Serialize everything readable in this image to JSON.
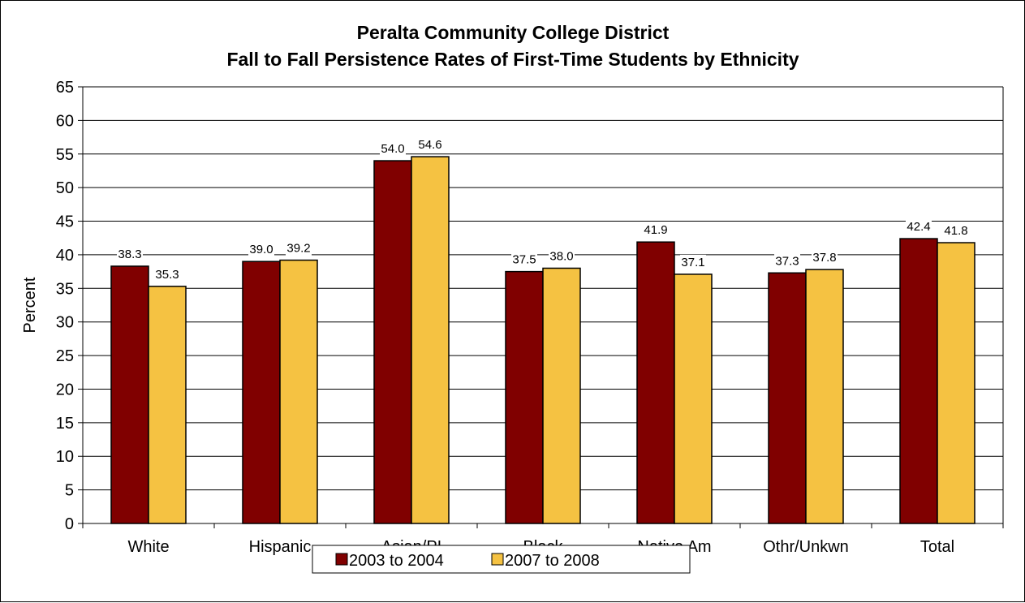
{
  "chart_data": {
    "type": "bar",
    "title": "Peralta Community College District",
    "subtitle": "Fall to Fall Persistence Rates of First-Time Students by Ethnicity",
    "xlabel": "",
    "ylabel": "Percent",
    "ylim": [
      0,
      65
    ],
    "yticks": [
      0,
      5,
      10,
      15,
      20,
      25,
      30,
      35,
      40,
      45,
      50,
      55,
      60,
      65
    ],
    "grid": true,
    "legend_position": "bottom",
    "categories": [
      "White",
      "Hispanic",
      "Asian/PI",
      "Black",
      "Native Am",
      "Othr/Unkwn",
      "Total"
    ],
    "series": [
      {
        "name": "2003 to 2004",
        "color": "#800000",
        "values": [
          38.3,
          39.0,
          54.0,
          37.5,
          41.9,
          37.3,
          42.4
        ],
        "labels": [
          "38.3",
          "39.0",
          "54.0",
          "37.5",
          "41.9",
          "37.3",
          "42.4"
        ]
      },
      {
        "name": "2007 to 2008",
        "color": "#F5C242",
        "values": [
          35.3,
          39.2,
          54.6,
          38.0,
          37.1,
          37.8,
          41.8
        ],
        "labels": [
          "35.3",
          "39.2",
          "54.6",
          "38.0",
          "37.1",
          "37.8",
          "41.8"
        ]
      }
    ]
  }
}
